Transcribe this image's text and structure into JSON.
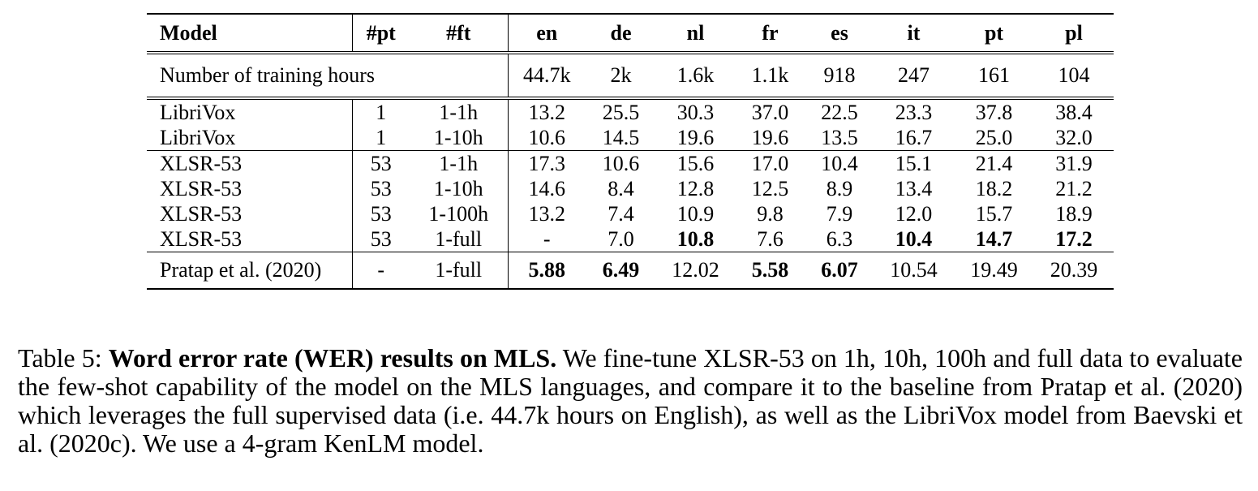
{
  "table": {
    "columns": [
      "Model",
      "#pt",
      "#ft",
      "en",
      "de",
      "nl",
      "fr",
      "es",
      "it",
      "pt",
      "pl"
    ],
    "hours_row": {
      "label": "Number of training hours",
      "values": [
        "44.7k",
        "2k",
        "1.6k",
        "1.1k",
        "918",
        "247",
        "161",
        "104"
      ]
    },
    "groups": [
      {
        "rows": [
          {
            "model": "LibriVox",
            "pt": "1",
            "ft": "1-1h",
            "values": [
              "13.2",
              "25.5",
              "30.3",
              "37.0",
              "22.5",
              "23.3",
              "37.8",
              "38.4"
            ],
            "bold": []
          },
          {
            "model": "LibriVox",
            "pt": "1",
            "ft": "1-10h",
            "values": [
              "10.6",
              "14.5",
              "19.6",
              "19.6",
              "13.5",
              "16.7",
              "25.0",
              "32.0"
            ],
            "bold": []
          }
        ]
      },
      {
        "rows": [
          {
            "model": "XLSR-53",
            "pt": "53",
            "ft": "1-1h",
            "values": [
              "17.3",
              "10.6",
              "15.6",
              "17.0",
              "10.4",
              "15.1",
              "21.4",
              "31.9"
            ],
            "bold": []
          },
          {
            "model": "XLSR-53",
            "pt": "53",
            "ft": "1-10h",
            "values": [
              "14.6",
              "8.4",
              "12.8",
              "12.5",
              "8.9",
              "13.4",
              "18.2",
              "21.2"
            ],
            "bold": []
          },
          {
            "model": "XLSR-53",
            "pt": "53",
            "ft": "1-100h",
            "values": [
              "13.2",
              "7.4",
              "10.9",
              "9.8",
              "7.9",
              "12.0",
              "15.7",
              "18.9"
            ],
            "bold": []
          },
          {
            "model": "XLSR-53",
            "pt": "53",
            "ft": "1-full",
            "values": [
              "-",
              "7.0",
              "10.8",
              "7.6",
              "6.3",
              "10.4",
              "14.7",
              "17.2"
            ],
            "bold": [
              2,
              5,
              6,
              7
            ]
          }
        ]
      },
      {
        "rows": [
          {
            "model": "Pratap et al. (2020)",
            "pt": "-",
            "ft": "1-full",
            "values": [
              "5.88",
              "6.49",
              "12.02",
              "5.58",
              "6.07",
              "10.54",
              "19.49",
              "20.39"
            ],
            "bold": [
              0,
              1,
              3,
              4
            ]
          }
        ]
      }
    ]
  },
  "caption": {
    "prefix": "Table 5: ",
    "bold": "Word error rate (WER) results on MLS.",
    "text": " We fine-tune XLSR-53 on 1h, 10h, 100h and full data to evaluate the few-shot capability of the model on the MLS languages, and compare it to the baseline from Pratap et al. (2020) which leverages the full supervised data (i.e. 44.7k hours on English), as well as the LibriVox model from Baevski et al. (2020c). We use a 4-gram KenLM model."
  }
}
